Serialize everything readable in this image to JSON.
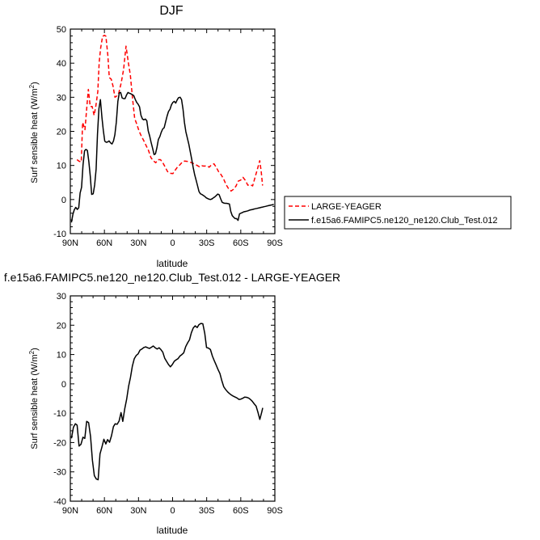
{
  "chart_data": [
    {
      "type": "line",
      "title": "DJF",
      "xlabel": "latitude",
      "ylabel": "Surf sensible heat (W/m",
      "ylabel_sup": "2",
      "ylabel_close": ")",
      "xlim": [
        -90,
        90
      ],
      "ylim": [
        -10,
        50
      ],
      "xticks": [
        -90,
        -60,
        -30,
        0,
        30,
        60,
        90
      ],
      "xtick_labels": [
        "90N",
        "60N",
        "30N",
        "0",
        "30S",
        "60S",
        "90S"
      ],
      "yticks": [
        -10,
        0,
        10,
        20,
        30,
        40,
        50
      ],
      "ytick_labels": [
        "-10",
        "0",
        "10",
        "20",
        "30",
        "40",
        "50"
      ],
      "legend_position": "right, outside plot",
      "series": [
        {
          "name": "LARGE-YEAGER",
          "color": "#ff0000",
          "dash": "dashed",
          "x": [
            -84.2,
            -82.1,
            -80.4,
            -79.2,
            -77.1,
            -75.4,
            -74.1,
            -72.5,
            -70.8,
            -69.1,
            -67.5,
            -65.8,
            -64.6,
            -63.3,
            -61.6,
            -59.9,
            -58.7,
            -57.0,
            -55.7,
            -54.0,
            -52.4,
            -50.7,
            -49.0,
            -47.3,
            -45.2,
            -43.1,
            -41.0,
            -38.9,
            -37.2,
            -35.1,
            -33.4,
            -31.7,
            -29.6,
            -27.5,
            -25.4,
            -23.3,
            -21.2,
            -19.1,
            -17.0,
            -14.9,
            -12.8,
            -10.7,
            -8.6,
            -6.5,
            -4.4,
            -2.3,
            0.2,
            2.3,
            4.4,
            6.5,
            8.6,
            10.7,
            12.8,
            15.3,
            17.4,
            19.5,
            21.6,
            23.7,
            25.8,
            27.9,
            30.0,
            32.2,
            34.3,
            36.4,
            38.5,
            40.6,
            42.7,
            44.8,
            46.9,
            49.0,
            51.5,
            53.6,
            55.7,
            57.8,
            59.9,
            62.0,
            64.1,
            66.2,
            68.3,
            70.4,
            72.5,
            74.6,
            76.7,
            78.0,
            79.2
          ],
          "values": [
            11.7,
            11.2,
            11.0,
            22.6,
            20.5,
            27.4,
            32.3,
            27.3,
            27.3,
            24.7,
            27.5,
            31.7,
            40.3,
            44.4,
            47.9,
            48.2,
            47.9,
            42.3,
            35.8,
            35.3,
            33.3,
            30.0,
            30.4,
            31.3,
            34.3,
            38.2,
            45.0,
            40.1,
            36.6,
            29.1,
            23.8,
            22.3,
            20.2,
            18.6,
            17.3,
            15.8,
            14.4,
            12.3,
            11.4,
            10.8,
            11.7,
            11.7,
            10.8,
            9.5,
            8.2,
            7.7,
            7.6,
            8.6,
            9.6,
            10.2,
            11.0,
            11.3,
            11.2,
            11.0,
            10.7,
            10.4,
            10.0,
            9.6,
            9.9,
            9.8,
            9.9,
            9.5,
            10.2,
            10.5,
            9.4,
            8.1,
            7.3,
            6.1,
            4.5,
            3.3,
            2.5,
            3.0,
            3.9,
            5.4,
            5.7,
            6.5,
            5.6,
            4.2,
            4.4,
            4.0,
            6.4,
            8.9,
            11.4,
            8.3,
            4.1
          ]
        },
        {
          "name": "f.e15a6.FAMIPC5.ne120_ne120.Club_Test.012",
          "color": "#000000",
          "dash": "solid",
          "x": [
            -89.0,
            -87.7,
            -86.5,
            -85.2,
            -83.9,
            -82.6,
            -81.4,
            -80.1,
            -78.8,
            -77.5,
            -76.3,
            -75.0,
            -73.7,
            -72.4,
            -71.2,
            -69.9,
            -68.6,
            -67.3,
            -66.1,
            -64.8,
            -63.5,
            -62.2,
            -61.0,
            -59.7,
            -58.4,
            -57.1,
            -55.9,
            -54.6,
            -53.3,
            -52.0,
            -50.8,
            -49.5,
            -48.2,
            -46.9,
            -45.7,
            -44.4,
            -43.1,
            -41.8,
            -40.6,
            -39.3,
            -38.0,
            -36.7,
            -35.5,
            -34.2,
            -32.9,
            -31.6,
            -30.4,
            -29.1,
            -27.8,
            -26.5,
            -25.3,
            -24.0,
            -22.7,
            -21.4,
            -20.2,
            -18.9,
            -17.6,
            -16.3,
            -15.1,
            -13.8,
            -12.5,
            -11.2,
            -10.0,
            -8.7,
            -7.4,
            -6.1,
            -4.9,
            -3.6,
            -2.3,
            -1.0,
            0.2,
            1.5,
            2.8,
            4.1,
            5.3,
            6.6,
            7.9,
            9.2,
            10.4,
            11.7,
            13.0,
            14.3,
            15.5,
            16.8,
            18.1,
            19.4,
            20.6,
            21.9,
            23.2,
            24.5,
            25.7,
            27.0,
            28.3,
            29.6,
            30.8,
            32.1,
            33.4,
            34.7,
            35.9,
            37.2,
            38.5,
            39.8,
            41.0,
            42.3,
            43.6,
            44.9,
            46.1,
            47.4,
            48.7,
            50.0,
            51.2,
            52.5,
            53.8,
            55.1,
            56.3,
            57.6,
            58.9,
            60.2,
            61.4,
            62.7,
            64.0,
            65.3,
            66.5,
            67.8,
            69.1,
            70.4,
            71.6,
            72.9,
            74.2,
            75.5,
            76.7,
            78.0,
            79.3,
            80.5,
            81.8,
            83.1,
            84.4,
            85.6,
            86.9,
            88.2,
            89.0
          ],
          "values": [
            -6.7,
            -4.3,
            -3.0,
            -2.3,
            -2.9,
            -2.4,
            1.9,
            3.6,
            10.1,
            14.3,
            14.7,
            14.4,
            11.1,
            6.8,
            1.5,
            1.7,
            4.3,
            8.9,
            19.2,
            26.7,
            29.3,
            24.1,
            20.3,
            17.1,
            16.8,
            16.9,
            17.2,
            16.6,
            16.3,
            17.2,
            19.0,
            22.7,
            28.8,
            31.3,
            31.4,
            29.8,
            29.6,
            29.6,
            30.6,
            31.4,
            31.2,
            31.0,
            30.8,
            30.5,
            29.4,
            28.5,
            28.0,
            27.2,
            24.7,
            23.6,
            23.4,
            23.6,
            23.1,
            20.1,
            18.7,
            16.8,
            15.0,
            13.2,
            13.4,
            15.2,
            17.6,
            18.5,
            19.7,
            20.7,
            21.1,
            22.8,
            24.4,
            25.8,
            26.5,
            27.8,
            28.5,
            28.8,
            28.3,
            29.3,
            29.9,
            30.0,
            29.3,
            26.5,
            22.7,
            19.9,
            18.0,
            16.2,
            14.1,
            11.9,
            9.5,
            7.3,
            5.8,
            4.1,
            2.4,
            1.7,
            1.5,
            1.2,
            0.9,
            0.5,
            0.3,
            0.1,
            0.0,
            0.2,
            0.5,
            0.8,
            1.2,
            1.6,
            1.4,
            0.2,
            -0.8,
            -1.0,
            -1.1,
            -1.1,
            -1.2,
            -1.3,
            -3.5,
            -4.7,
            -5.2,
            -5.6,
            -5.6,
            -6.1,
            -4.2,
            -4.0,
            -3.8,
            -3.6,
            -3.5,
            -3.4,
            -3.3,
            -3.1,
            -3.0,
            -2.9,
            -2.8,
            -2.7,
            -2.6,
            -2.5,
            -2.4,
            -2.3,
            -2.2,
            -2.1,
            -2.0,
            -1.9,
            -1.8,
            -1.7,
            -1.6,
            -1.5,
            -1.4
          ]
        }
      ]
    },
    {
      "type": "line",
      "title": "f.e15a6.FAMIPC5.ne120_ne120.Club_Test.012 - LARGE-YEAGER",
      "xlabel": "latitude",
      "ylabel": "Surf sensible heat (W/m",
      "ylabel_sup": "2",
      "ylabel_close": ")",
      "xlim": [
        -90,
        90
      ],
      "ylim": [
        -40,
        30
      ],
      "xticks": [
        -90,
        -60,
        -30,
        0,
        30,
        60,
        90
      ],
      "xtick_labels": [
        "90N",
        "60N",
        "30N",
        "0",
        "30S",
        "60S",
        "90S"
      ],
      "yticks": [
        -40,
        -30,
        -20,
        -10,
        0,
        10,
        20,
        30
      ],
      "ytick_labels": [
        "-40",
        "-30",
        "-20",
        "-10",
        "0",
        "10",
        "20",
        "30"
      ],
      "series": [
        {
          "color": "#000000",
          "dash": "solid",
          "x": [
            -89.0,
            -87.3,
            -85.6,
            -84.0,
            -82.3,
            -80.6,
            -78.9,
            -77.3,
            -75.6,
            -73.9,
            -72.2,
            -70.6,
            -68.9,
            -67.2,
            -65.5,
            -63.9,
            -62.2,
            -60.5,
            -58.8,
            -57.2,
            -55.5,
            -53.8,
            -52.1,
            -50.5,
            -48.8,
            -47.1,
            -45.4,
            -43.8,
            -42.1,
            -40.4,
            -38.7,
            -37.1,
            -35.4,
            -33.7,
            -32.0,
            -30.4,
            -28.7,
            -27.0,
            -25.3,
            -23.7,
            -22.0,
            -20.3,
            -18.6,
            -17.0,
            -15.3,
            -13.6,
            -11.9,
            -10.3,
            -8.6,
            -6.9,
            -5.2,
            -3.6,
            -1.9,
            -0.2,
            1.5,
            3.1,
            4.8,
            6.5,
            8.2,
            9.8,
            11.5,
            13.2,
            14.9,
            16.5,
            18.2,
            19.9,
            21.6,
            23.2,
            24.9,
            26.6,
            28.3,
            29.9,
            31.6,
            33.3,
            35.0,
            36.6,
            38.3,
            40.0,
            41.7,
            43.3,
            45.0,
            46.7,
            48.4,
            50.0,
            51.7,
            53.4,
            55.1,
            56.7,
            58.4,
            60.1,
            61.8,
            63.4,
            65.1,
            66.8,
            68.5,
            70.1,
            71.8,
            73.5,
            75.2,
            76.8,
            78.5,
            79.3
          ],
          "values": [
            -18.6,
            -14.8,
            -13.6,
            -14.1,
            -21.2,
            -20.6,
            -18.2,
            -18.6,
            -12.8,
            -13.2,
            -17.9,
            -26.0,
            -31.3,
            -32.4,
            -32.7,
            -23.9,
            -21.5,
            -18.9,
            -20.5,
            -19.0,
            -19.9,
            -17.7,
            -14.6,
            -13.6,
            -13.8,
            -12.7,
            -9.8,
            -12.8,
            -8.5,
            -5.2,
            -0.8,
            2.2,
            6.0,
            8.6,
            9.7,
            10.2,
            11.5,
            11.9,
            12.4,
            12.6,
            12.3,
            12.1,
            12.5,
            12.9,
            12.3,
            11.9,
            12.3,
            11.7,
            10.8,
            8.7,
            7.6,
            6.6,
            5.8,
            6.6,
            7.7,
            8.2,
            8.6,
            9.5,
            10.0,
            10.6,
            12.7,
            14.0,
            15.0,
            17.4,
            19.1,
            19.8,
            19.2,
            20.2,
            20.6,
            20.5,
            17.2,
            12.4,
            12.2,
            11.7,
            9.5,
            8.0,
            6.5,
            4.9,
            3.5,
            1.1,
            -1.0,
            -1.9,
            -2.7,
            -3.3,
            -3.8,
            -4.2,
            -4.5,
            -4.8,
            -5.3,
            -5.2,
            -4.9,
            -4.5,
            -4.6,
            -4.8,
            -5.3,
            -5.9,
            -6.8,
            -7.6,
            -9.8,
            -12.1,
            -9.6,
            -8.2
          ]
        }
      ]
    }
  ]
}
